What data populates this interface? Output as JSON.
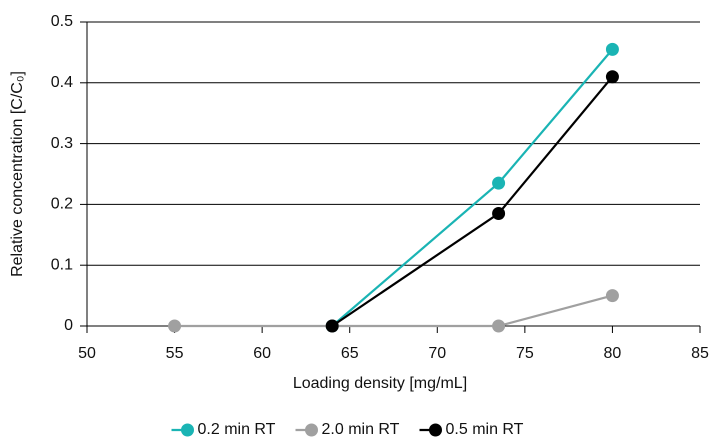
{
  "chart_data": {
    "type": "line",
    "x_label": "Loading density [mg/mL]",
    "y_label": "Relative concentration [C/C₀]",
    "x": [
      55,
      64,
      73.5,
      80
    ],
    "series": [
      {
        "name": "0.2 min RT",
        "color": "#1ab4b4",
        "values": [
          null,
          0,
          0.235,
          0.455
        ]
      },
      {
        "name": "2.0 min RT",
        "color": "#a0a0a0",
        "values": [
          0,
          0,
          0,
          0.05
        ]
      },
      {
        "name": "0.5 min RT",
        "color": "#000000",
        "values": [
          null,
          0,
          0.185,
          0.41
        ]
      }
    ],
    "xlim": [
      50,
      85
    ],
    "xticks": [
      50,
      55,
      60,
      65,
      70,
      75,
      80,
      85
    ],
    "ylim": [
      0,
      0.5
    ],
    "yticks": [
      0,
      0.1,
      0.2,
      0.3,
      0.4,
      0.5
    ],
    "grid": true,
    "legend": "bottom"
  }
}
